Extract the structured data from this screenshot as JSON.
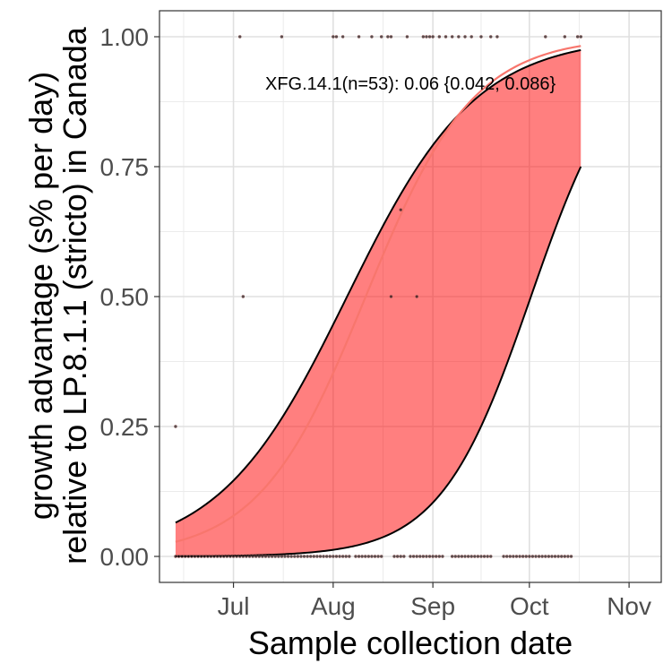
{
  "chart_data": {
    "type": "line",
    "xlabel": "Sample collection date",
    "ylabel_lines": [
      "growth advantage (s% per day)",
      "relative to LP.8.1.1 (stricto) in Canada"
    ],
    "x_ticks": [
      "Jul",
      "Aug",
      "Sep",
      "Oct",
      "Nov"
    ],
    "x_tick_dates": [
      "2025-07-01",
      "2025-08-01",
      "2025-09-01",
      "2025-10-01",
      "2025-11-01"
    ],
    "x_range": [
      "2025-06-08",
      "2025-11-11"
    ],
    "y_ticks": [
      "0.00",
      "0.25",
      "0.50",
      "0.75",
      "1.00"
    ],
    "ylim": [
      -0.05,
      1.05
    ],
    "grid": true,
    "annotation": "XFG.14.1(n=53): 0.06 {0.042, 0.086}",
    "colors": {
      "fit_line": "#f8766d",
      "ribbon_fill": "#ff0000",
      "ribbon_edge": "#000000",
      "points": "#000000"
    },
    "fit": {
      "x_start": "2025-06-13",
      "x_end": "2025-10-17",
      "center": {
        "start_value": 0.028,
        "midpoint": "2025-08-07",
        "rate": 0.06
      },
      "lower": {
        "start_value": 0.0004,
        "end_value": 0.75,
        "midpoint": "2025-10-05",
        "rate": 0.06
      },
      "upper": {
        "start_value": 0.065,
        "midpoint": "2025-07-29",
        "rate": 0.05
      }
    },
    "points": [
      {
        "date": "2025-06-13",
        "value": 0.25
      },
      {
        "date": "2025-07-03",
        "value": 1.0
      },
      {
        "date": "2025-07-04",
        "value": 0.5
      },
      {
        "date": "2025-07-16",
        "value": 1.0
      },
      {
        "date": "2025-08-01",
        "value": 1.0
      },
      {
        "date": "2025-08-02",
        "value": 1.0
      },
      {
        "date": "2025-08-04",
        "value": 1.0
      },
      {
        "date": "2025-08-09",
        "value": 1.0
      },
      {
        "date": "2025-08-13",
        "value": 1.0
      },
      {
        "date": "2025-08-16",
        "value": 1.0
      },
      {
        "date": "2025-08-18",
        "value": 1.0
      },
      {
        "date": "2025-08-19",
        "value": 1.0
      },
      {
        "date": "2025-08-19",
        "value": 0.5
      },
      {
        "date": "2025-08-22",
        "value": 0.667
      },
      {
        "date": "2025-08-24",
        "value": 1.0
      },
      {
        "date": "2025-08-27",
        "value": 0.5
      },
      {
        "date": "2025-08-29",
        "value": 1.0
      },
      {
        "date": "2025-08-30",
        "value": 1.0
      },
      {
        "date": "2025-08-31",
        "value": 1.0
      },
      {
        "date": "2025-09-01",
        "value": 1.0
      },
      {
        "date": "2025-09-03",
        "value": 1.0
      },
      {
        "date": "2025-09-05",
        "value": 1.0
      },
      {
        "date": "2025-09-07",
        "value": 1.0
      },
      {
        "date": "2025-09-09",
        "value": 1.0
      },
      {
        "date": "2025-09-11",
        "value": 1.0
      },
      {
        "date": "2025-09-13",
        "value": 1.0
      },
      {
        "date": "2025-09-16",
        "value": 1.0
      },
      {
        "date": "2025-09-19",
        "value": 1.0
      },
      {
        "date": "2025-09-21",
        "value": 1.0
      },
      {
        "date": "2025-10-06",
        "value": 1.0
      },
      {
        "date": "2025-10-12",
        "value": 1.0
      },
      {
        "date": "2025-10-16",
        "value": 1.0
      },
      {
        "date": "2025-10-17",
        "value": 1.0
      }
    ],
    "zero_points_ranges": [
      [
        "2025-06-13",
        "2025-08-06"
      ],
      [
        "2025-08-08",
        "2025-08-16"
      ],
      [
        "2025-08-20",
        "2025-08-23"
      ],
      [
        "2025-08-25",
        "2025-09-04"
      ],
      [
        "2025-09-07",
        "2025-09-19"
      ],
      [
        "2025-09-23",
        "2025-10-14"
      ]
    ]
  }
}
